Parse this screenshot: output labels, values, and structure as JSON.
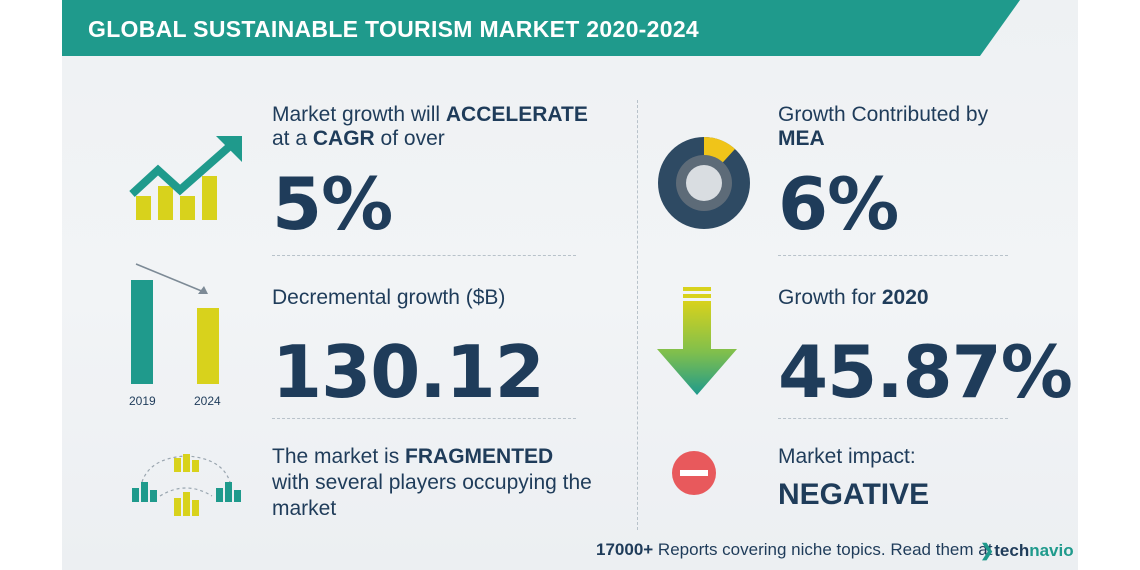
{
  "header": {
    "title": "GLOBAL SUSTAINABLE TOURISM MARKET 2020-2024"
  },
  "growth": {
    "line1_prefix": "Market growth will ",
    "line1_bold": "ACCELERATE",
    "line2_prefix": "at a ",
    "line2_bold": "CAGR",
    "line2_suffix": " of over",
    "value": "5%"
  },
  "decremental": {
    "label": "Decremental growth ($B)",
    "value": "130.12",
    "year_start": "2019",
    "year_end": "2024"
  },
  "fragmented": {
    "line1_prefix": "The market is ",
    "line1_bold": "FRAGMENTED",
    "line2": "with several players occupying the",
    "line3": "market"
  },
  "mea": {
    "line1": "Growth Contributed by",
    "line2_bold": "MEA",
    "value": "6%"
  },
  "year_growth": {
    "label_prefix": "Growth for ",
    "label_bold": "2020",
    "value": "45.87%"
  },
  "impact": {
    "label": "Market impact:",
    "value": "NEGATIVE"
  },
  "footer": {
    "count": "17000+",
    "text": " Reports covering niche topics. Read them at",
    "brand_tech": "tech",
    "brand_navio": "navio"
  },
  "colors": {
    "teal": "#1f9a8c",
    "navy": "#1f3c5a",
    "yellow": "#d8d21c",
    "green": "#1f9a8c",
    "red": "#e8595c"
  },
  "icons": [
    "trend-up-icon",
    "bar-decline-icon",
    "fragmented-players-icon",
    "donut-icon",
    "down-arrow-icon",
    "minus-circle-icon"
  ]
}
